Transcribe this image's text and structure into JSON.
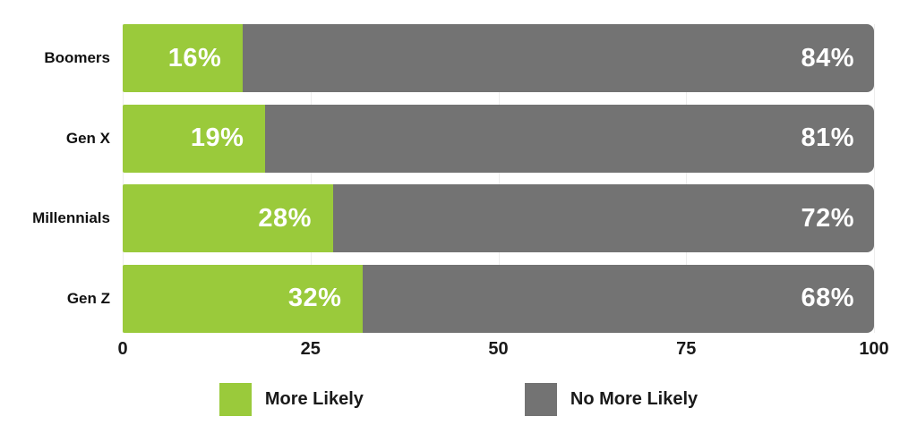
{
  "chart_data": {
    "type": "bar",
    "orientation": "horizontal",
    "stacked": true,
    "title": "",
    "xlabel": "",
    "ylabel": "",
    "categories": [
      "Boomers",
      "Gen X",
      "Millennials",
      "Gen Z"
    ],
    "series": [
      {
        "name": "More Likely",
        "color": "#9ACA3B",
        "values": [
          16,
          19,
          28,
          32
        ],
        "labels": [
          "16%",
          "19%",
          "28%",
          "32%"
        ]
      },
      {
        "name": "No More Likely",
        "color": "#737373",
        "values": [
          84,
          81,
          72,
          68
        ],
        "labels": [
          "84%",
          "81%",
          "72%",
          "68%"
        ]
      }
    ],
    "xlim": [
      0,
      100
    ],
    "x_ticks": [
      0,
      25,
      50,
      75,
      100
    ],
    "x_tick_labels": [
      "0",
      "25",
      "50",
      "75",
      "100"
    ],
    "grid": "vertical-light",
    "gridline_color": "#ededed",
    "value_label_color": "#ffffff",
    "axis_text_color": "#1a1a1a",
    "background": "#ffffff",
    "legend_position": "bottom",
    "legend": [
      "More Likely",
      "No More Likely"
    ]
  }
}
